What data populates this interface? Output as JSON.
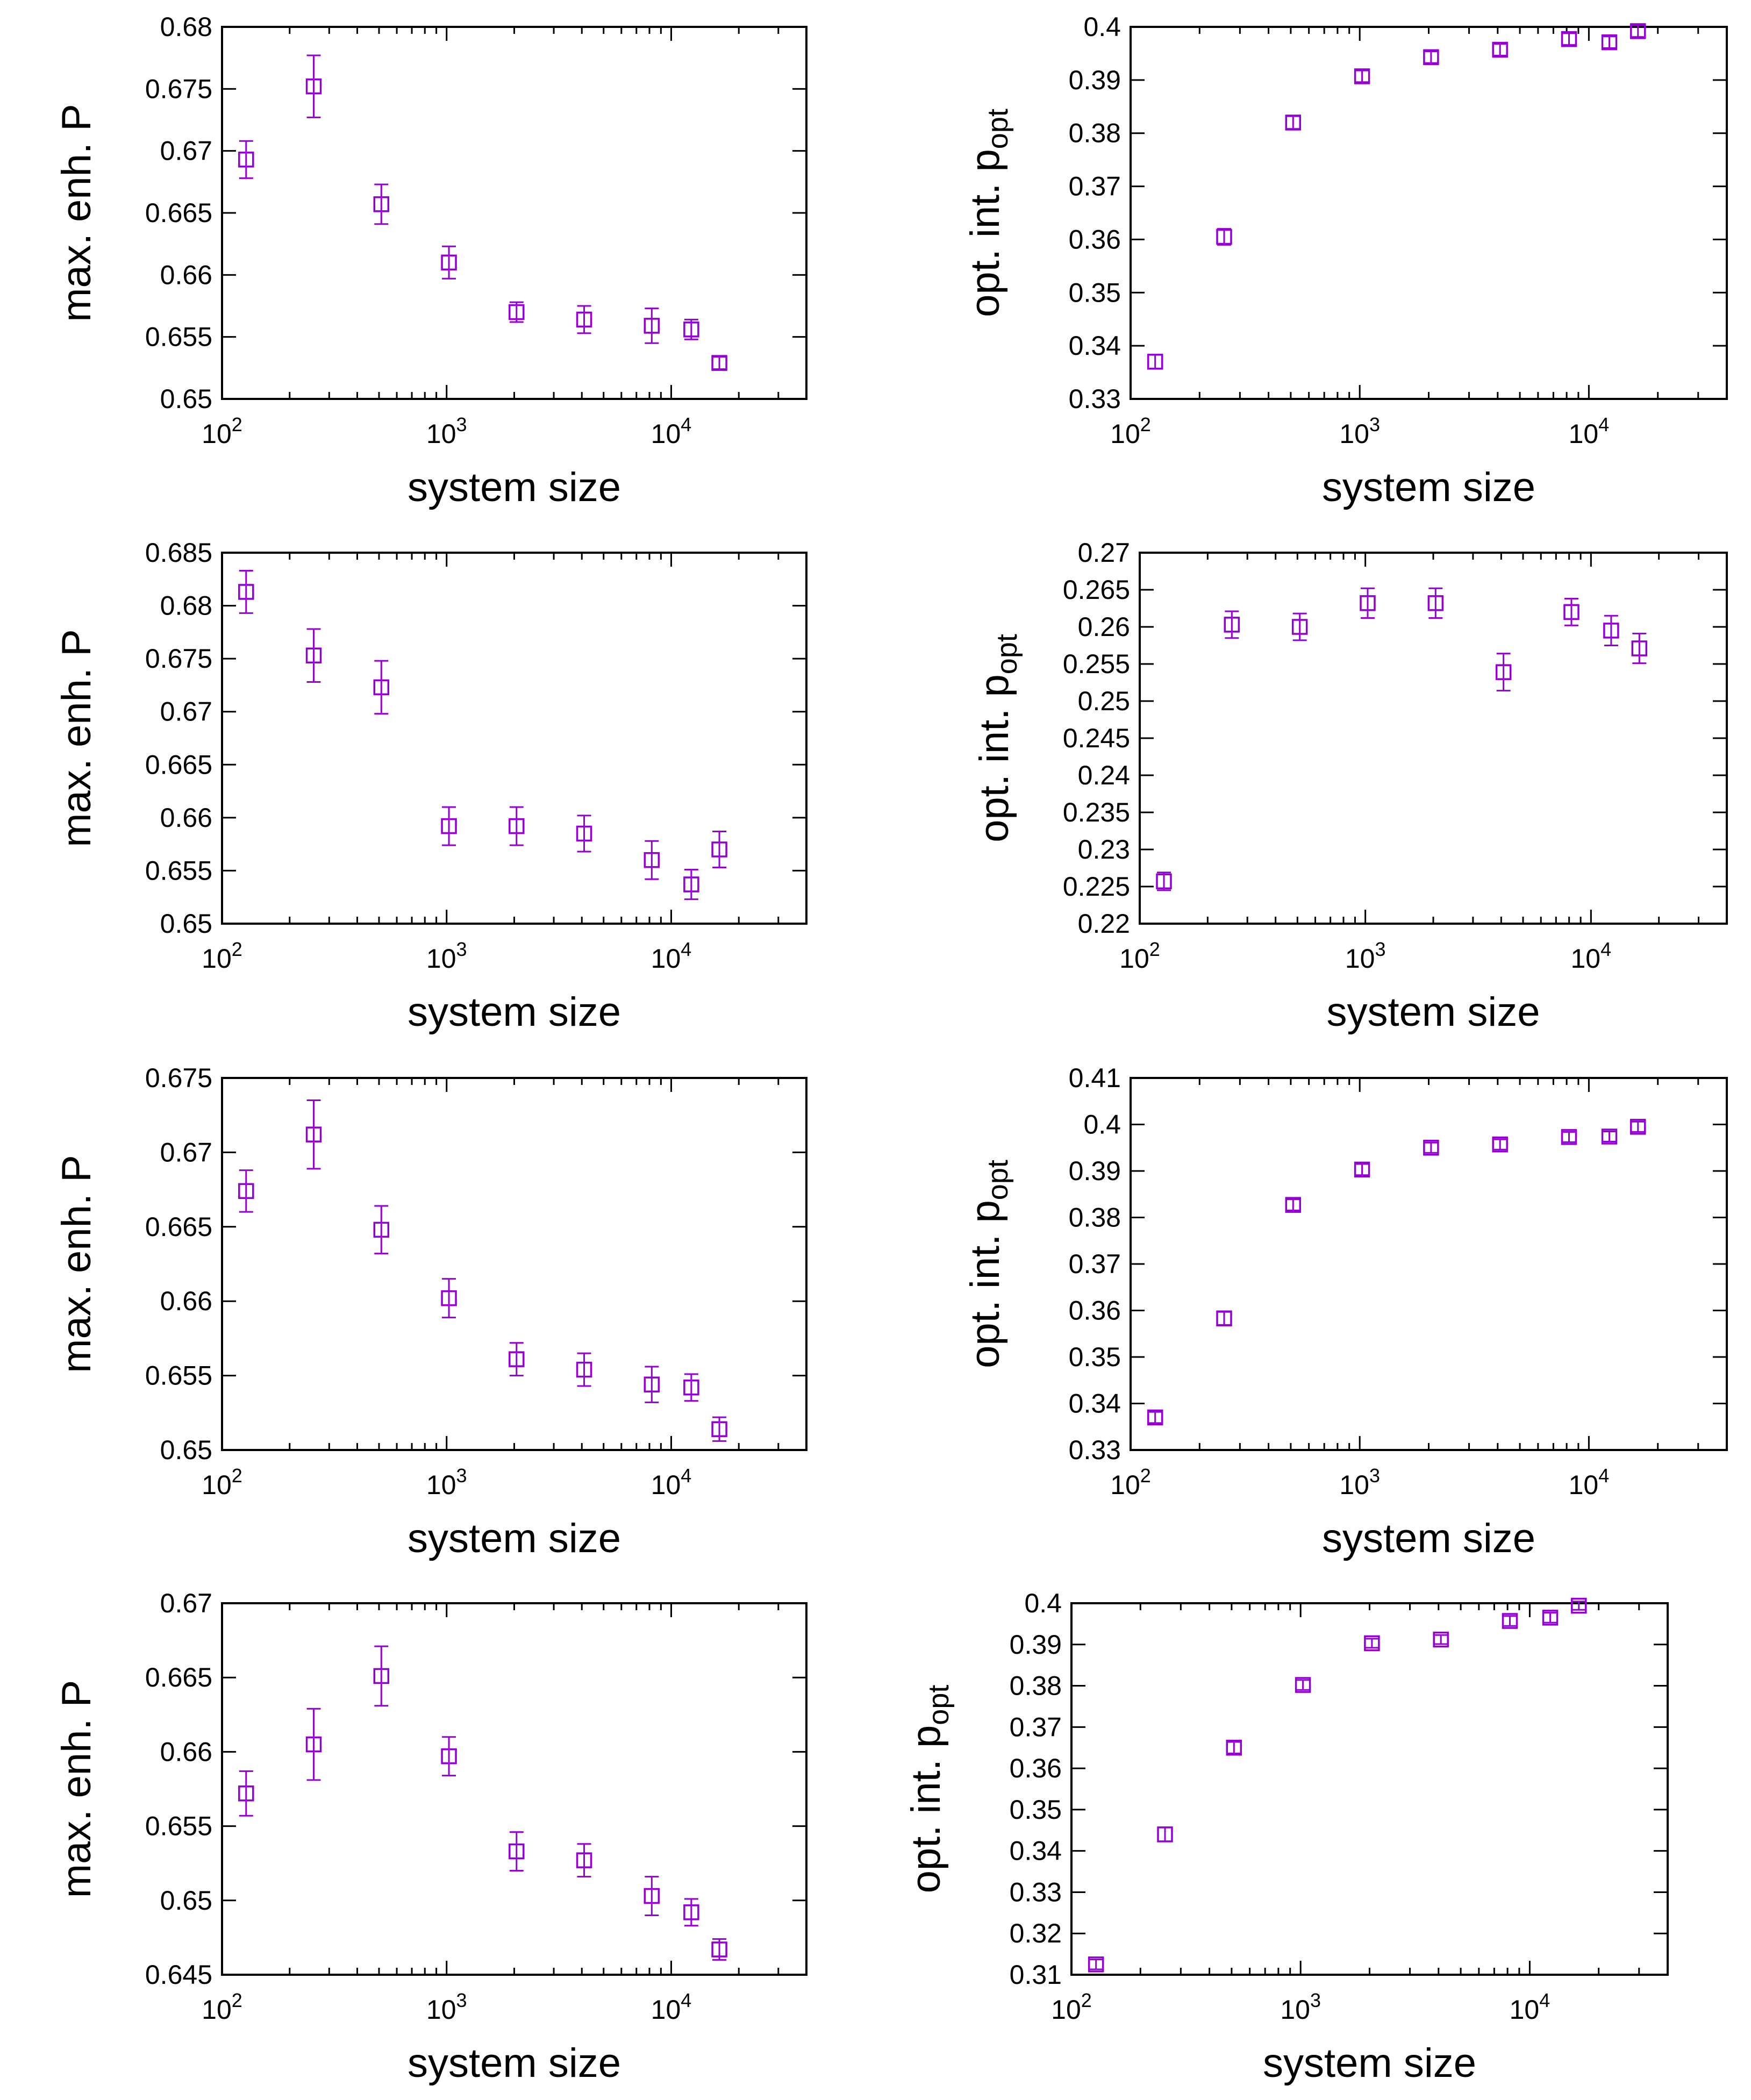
{
  "colors": {
    "marker": "#9400D3",
    "axis": "#000000",
    "background": "#ffffff"
  },
  "chart_data": [
    {
      "type": "scatter",
      "panel": "row-1-left",
      "grid": false,
      "xscale": "log",
      "xlim": [
        100,
        40000
      ],
      "ylim": [
        0.65,
        0.68
      ],
      "xticks": [
        100,
        1000,
        10000
      ],
      "xtick_labels": [
        {
          "base": "10",
          "exp": "2"
        },
        {
          "base": "10",
          "exp": "3"
        },
        {
          "base": "10",
          "exp": "4"
        }
      ],
      "yticks": [
        0.65,
        0.655,
        0.66,
        0.665,
        0.67,
        0.675,
        0.68
      ],
      "ytick_labels": [
        "0.65",
        "0.655",
        "0.66",
        "0.665",
        "0.67",
        "0.675",
        "0.68"
      ],
      "xlabel": "system size",
      "ylabel": {
        "main": "max. enh. P",
        "sub": ""
      },
      "points": [
        {
          "x": 128,
          "y": 0.6693,
          "err": 0.0015
        },
        {
          "x": 256,
          "y": 0.6752,
          "err": 0.0025
        },
        {
          "x": 512,
          "y": 0.6657,
          "err": 0.0016
        },
        {
          "x": 1024,
          "y": 0.661,
          "err": 0.0013
        },
        {
          "x": 2048,
          "y": 0.657,
          "err": 0.0008
        },
        {
          "x": 4096,
          "y": 0.6564,
          "err": 0.0011
        },
        {
          "x": 8192,
          "y": 0.6559,
          "err": 0.0014
        },
        {
          "x": 12288,
          "y": 0.6556,
          "err": 0.0008
        },
        {
          "x": 16384,
          "y": 0.6529,
          "err": 0.0005
        }
      ]
    },
    {
      "type": "scatter",
      "panel": "row-1-right",
      "grid": false,
      "xscale": "log",
      "xlim": [
        100,
        40000
      ],
      "ylim": [
        0.33,
        0.4
      ],
      "xticks": [
        100,
        1000,
        10000
      ],
      "xtick_labels": [
        {
          "base": "10",
          "exp": "2"
        },
        {
          "base": "10",
          "exp": "3"
        },
        {
          "base": "10",
          "exp": "4"
        }
      ],
      "yticks": [
        0.33,
        0.34,
        0.35,
        0.36,
        0.37,
        0.38,
        0.39,
        0.4
      ],
      "ytick_labels": [
        "0.33",
        "0.34",
        "0.35",
        "0.36",
        "0.37",
        "0.38",
        "0.39",
        "0.4"
      ],
      "xlabel": "system size",
      "ylabel": {
        "main": "opt. int. p",
        "sub": "opt"
      },
      "points": [
        {
          "x": 128,
          "y": 0.337,
          "err": 0.0013
        },
        {
          "x": 256,
          "y": 0.3605,
          "err": 0.0015
        },
        {
          "x": 512,
          "y": 0.382,
          "err": 0.0012
        },
        {
          "x": 1024,
          "y": 0.3907,
          "err": 0.0011
        },
        {
          "x": 2048,
          "y": 0.3943,
          "err": 0.0011
        },
        {
          "x": 4096,
          "y": 0.3957,
          "err": 0.0011
        },
        {
          "x": 8192,
          "y": 0.3977,
          "err": 0.0011
        },
        {
          "x": 12288,
          "y": 0.3971,
          "err": 0.0011
        },
        {
          "x": 16384,
          "y": 0.3992,
          "err": 0.0011
        }
      ]
    },
    {
      "type": "scatter",
      "panel": "row-2-left",
      "grid": false,
      "xscale": "log",
      "xlim": [
        100,
        40000
      ],
      "ylim": [
        0.65,
        0.685
      ],
      "xticks": [
        100,
        1000,
        10000
      ],
      "xtick_labels": [
        {
          "base": "10",
          "exp": "2"
        },
        {
          "base": "10",
          "exp": "3"
        },
        {
          "base": "10",
          "exp": "4"
        }
      ],
      "yticks": [
        0.65,
        0.655,
        0.66,
        0.665,
        0.67,
        0.675,
        0.68,
        0.685
      ],
      "ytick_labels": [
        "0.65",
        "0.655",
        "0.66",
        "0.665",
        "0.67",
        "0.675",
        "0.68",
        "0.685"
      ],
      "xlabel": "system size",
      "ylabel": {
        "main": "max. enh. P",
        "sub": ""
      },
      "points": [
        {
          "x": 128,
          "y": 0.6813,
          "err": 0.002
        },
        {
          "x": 256,
          "y": 0.6753,
          "err": 0.0025
        },
        {
          "x": 512,
          "y": 0.6723,
          "err": 0.0025
        },
        {
          "x": 1024,
          "y": 0.6592,
          "err": 0.0018
        },
        {
          "x": 2048,
          "y": 0.6592,
          "err": 0.0018
        },
        {
          "x": 4096,
          "y": 0.6585,
          "err": 0.0017
        },
        {
          "x": 8192,
          "y": 0.656,
          "err": 0.0018
        },
        {
          "x": 12288,
          "y": 0.6537,
          "err": 0.0014
        },
        {
          "x": 16384,
          "y": 0.657,
          "err": 0.0017
        }
      ]
    },
    {
      "type": "scatter",
      "panel": "row-2-right",
      "grid": false,
      "xscale": "log",
      "xlim": [
        100,
        40000
      ],
      "ylim": [
        0.22,
        0.27
      ],
      "xticks": [
        100,
        1000,
        10000
      ],
      "xtick_labels": [
        {
          "base": "10",
          "exp": "2"
        },
        {
          "base": "10",
          "exp": "3"
        },
        {
          "base": "10",
          "exp": "4"
        }
      ],
      "yticks": [
        0.22,
        0.225,
        0.23,
        0.235,
        0.24,
        0.245,
        0.25,
        0.255,
        0.26,
        0.265,
        0.27
      ],
      "ytick_labels": [
        "0.22",
        "0.225",
        "0.23",
        "0.235",
        "0.24",
        "0.245",
        "0.25",
        "0.255",
        "0.26",
        "0.265",
        "0.27"
      ],
      "xlabel": "system size",
      "ylabel": {
        "main": "opt. int. p",
        "sub": "opt"
      },
      "points": [
        {
          "x": 128,
          "y": 0.2257,
          "err": 0.0012
        },
        {
          "x": 256,
          "y": 0.2603,
          "err": 0.0018
        },
        {
          "x": 512,
          "y": 0.26,
          "err": 0.0018
        },
        {
          "x": 1024,
          "y": 0.2632,
          "err": 0.002
        },
        {
          "x": 2048,
          "y": 0.2632,
          "err": 0.002
        },
        {
          "x": 4096,
          "y": 0.2539,
          "err": 0.0025
        },
        {
          "x": 8192,
          "y": 0.262,
          "err": 0.0018
        },
        {
          "x": 12288,
          "y": 0.2595,
          "err": 0.002
        },
        {
          "x": 16384,
          "y": 0.2571,
          "err": 0.002
        }
      ]
    },
    {
      "type": "scatter",
      "panel": "row-3-left",
      "grid": false,
      "xscale": "log",
      "xlim": [
        100,
        40000
      ],
      "ylim": [
        0.65,
        0.675
      ],
      "xticks": [
        100,
        1000,
        10000
      ],
      "xtick_labels": [
        {
          "base": "10",
          "exp": "2"
        },
        {
          "base": "10",
          "exp": "3"
        },
        {
          "base": "10",
          "exp": "4"
        }
      ],
      "yticks": [
        0.65,
        0.655,
        0.66,
        0.665,
        0.67,
        0.675
      ],
      "ytick_labels": [
        "0.65",
        "0.655",
        "0.66",
        "0.665",
        "0.67",
        "0.675"
      ],
      "xlabel": "system size",
      "ylabel": {
        "main": "max. enh. P",
        "sub": ""
      },
      "points": [
        {
          "x": 128,
          "y": 0.6674,
          "err": 0.0014
        },
        {
          "x": 256,
          "y": 0.6712,
          "err": 0.0023
        },
        {
          "x": 512,
          "y": 0.6648,
          "err": 0.0016
        },
        {
          "x": 1024,
          "y": 0.6602,
          "err": 0.0013
        },
        {
          "x": 2048,
          "y": 0.6561,
          "err": 0.0011
        },
        {
          "x": 4096,
          "y": 0.6554,
          "err": 0.0011
        },
        {
          "x": 8192,
          "y": 0.6544,
          "err": 0.0012
        },
        {
          "x": 12288,
          "y": 0.6542,
          "err": 0.0009
        },
        {
          "x": 16384,
          "y": 0.6514,
          "err": 0.0008
        }
      ]
    },
    {
      "type": "scatter",
      "panel": "row-3-right",
      "grid": false,
      "xscale": "log",
      "xlim": [
        100,
        40000
      ],
      "ylim": [
        0.33,
        0.41
      ],
      "xticks": [
        100,
        1000,
        10000
      ],
      "xtick_labels": [
        {
          "base": "10",
          "exp": "2"
        },
        {
          "base": "10",
          "exp": "3"
        },
        {
          "base": "10",
          "exp": "4"
        }
      ],
      "yticks": [
        0.33,
        0.34,
        0.35,
        0.36,
        0.37,
        0.38,
        0.39,
        0.4,
        0.41
      ],
      "ytick_labels": [
        "0.33",
        "0.34",
        "0.35",
        "0.36",
        "0.37",
        "0.38",
        "0.39",
        "0.4",
        "0.41"
      ],
      "xlabel": "system size",
      "ylabel": {
        "main": "opt. int. p",
        "sub": "opt"
      },
      "points": [
        {
          "x": 128,
          "y": 0.337,
          "err": 0.0012
        },
        {
          "x": 256,
          "y": 0.3583,
          "err": 0.0014
        },
        {
          "x": 512,
          "y": 0.3827,
          "err": 0.0012
        },
        {
          "x": 1024,
          "y": 0.3903,
          "err": 0.0012
        },
        {
          "x": 2048,
          "y": 0.395,
          "err": 0.0011
        },
        {
          "x": 4096,
          "y": 0.3957,
          "err": 0.0011
        },
        {
          "x": 8192,
          "y": 0.3973,
          "err": 0.0011
        },
        {
          "x": 12288,
          "y": 0.3974,
          "err": 0.0011
        },
        {
          "x": 16384,
          "y": 0.3995,
          "err": 0.0011
        }
      ]
    },
    {
      "type": "scatter",
      "panel": "row-4-left",
      "grid": false,
      "xscale": "log",
      "xlim": [
        100,
        40000
      ],
      "ylim": [
        0.645,
        0.67
      ],
      "xticks": [
        100,
        1000,
        10000
      ],
      "xtick_labels": [
        {
          "base": "10",
          "exp": "2"
        },
        {
          "base": "10",
          "exp": "3"
        },
        {
          "base": "10",
          "exp": "4"
        }
      ],
      "yticks": [
        0.645,
        0.65,
        0.655,
        0.66,
        0.665,
        0.67
      ],
      "ytick_labels": [
        "0.645",
        "0.65",
        "0.655",
        "0.66",
        "0.665",
        "0.67"
      ],
      "xlabel": "system size",
      "ylabel": {
        "main": "max. enh. P",
        "sub": ""
      },
      "points": [
        {
          "x": 128,
          "y": 0.6572,
          "err": 0.0015
        },
        {
          "x": 256,
          "y": 0.6605,
          "err": 0.0024
        },
        {
          "x": 512,
          "y": 0.6651,
          "err": 0.002
        },
        {
          "x": 1024,
          "y": 0.6597,
          "err": 0.0013
        },
        {
          "x": 2048,
          "y": 0.6533,
          "err": 0.0013
        },
        {
          "x": 4096,
          "y": 0.6527,
          "err": 0.0011
        },
        {
          "x": 8192,
          "y": 0.6503,
          "err": 0.0013
        },
        {
          "x": 12288,
          "y": 0.6492,
          "err": 0.0009
        },
        {
          "x": 16384,
          "y": 0.6467,
          "err": 0.0007
        }
      ]
    },
    {
      "type": "scatter",
      "panel": "row-4-right",
      "grid": false,
      "xscale": "log",
      "xlim": [
        100,
        40000
      ],
      "ylim": [
        0.31,
        0.4
      ],
      "xticks": [
        100,
        1000,
        10000
      ],
      "xtick_labels": [
        {
          "base": "10",
          "exp": "2"
        },
        {
          "base": "10",
          "exp": "3"
        },
        {
          "base": "10",
          "exp": "4"
        }
      ],
      "yticks": [
        0.31,
        0.32,
        0.33,
        0.34,
        0.35,
        0.36,
        0.37,
        0.38,
        0.39,
        0.4
      ],
      "ytick_labels": [
        "0.31",
        "0.32",
        "0.33",
        "0.34",
        "0.35",
        "0.36",
        "0.37",
        "0.38",
        "0.39",
        "0.4"
      ],
      "xlabel": "system size",
      "ylabel": {
        "main": "opt. int. p",
        "sub": "opt"
      },
      "points": [
        {
          "x": 128,
          "y": 0.3125,
          "err": 0.0012
        },
        {
          "x": 256,
          "y": 0.344,
          "err": 0.0017
        },
        {
          "x": 512,
          "y": 0.365,
          "err": 0.0014
        },
        {
          "x": 1024,
          "y": 0.3802,
          "err": 0.0012
        },
        {
          "x": 2048,
          "y": 0.3903,
          "err": 0.0011
        },
        {
          "x": 4096,
          "y": 0.3912,
          "err": 0.0011
        },
        {
          "x": 8192,
          "y": 0.3957,
          "err": 0.0012
        },
        {
          "x": 12288,
          "y": 0.3965,
          "err": 0.0012
        },
        {
          "x": 16384,
          "y": 0.3994,
          "err": 0.001
        }
      ]
    }
  ]
}
